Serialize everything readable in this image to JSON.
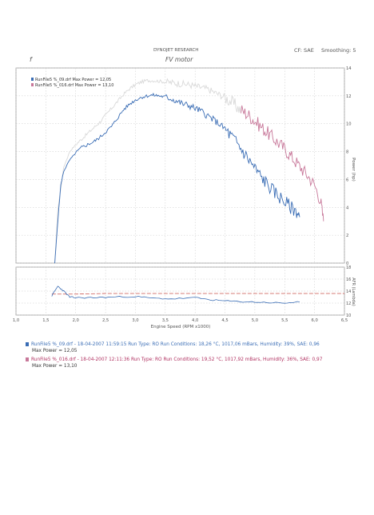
{
  "header": {
    "brand": "DYNOJET RESEARCH",
    "chart_name": "FV motor",
    "correction": "CF: SAE",
    "smoothing": "Smoothing: 5",
    "corner_mark": "f"
  },
  "colors": {
    "run09": "#3a6db5",
    "run016": "#c8789a",
    "run016_early": "#d9d9d9",
    "afr_line": "#c8504a",
    "grid": "#c0c0c0",
    "axis": "#555555"
  },
  "legend": {
    "entries": [
      {
        "text": "RunFile5 %_09.drf Max Power = 12,05",
        "color": "#3a6db5"
      },
      {
        "text": "RunFile5 %_016.drf Max Power = 13,10",
        "color": "#c8789a"
      }
    ]
  },
  "runs": [
    {
      "line1": "RunFile5 %_09.drf - 18-04-2007 11:59:15  Run Type: RO  Run Conditions: 18,26 °C, 1017,06 mBars,  Humidity: 39%, SAE: 0,96",
      "line2": "Max Power = 12,05",
      "color": "#3a6db5"
    },
    {
      "line1": "RunFile5 %_016.drf - 18-04-2007 12:11:36  Run Type: RO  Run Conditions: 19,52 °C, 1017,92 mBars,  Humidity: 36%, SAE: 0,97",
      "line2": "Max Power = 13,10",
      "color": "#c8789a"
    }
  ],
  "chart_data": [
    {
      "type": "line",
      "title": "FV motor",
      "ylabel": "Power (hp)",
      "xlim": [
        1.0,
        6.5
      ],
      "ylim": [
        0,
        14
      ],
      "yticks": [
        "0",
        "2",
        "4",
        "6",
        "8",
        "10",
        "12",
        "14"
      ],
      "grid": true,
      "legend_position": "top-left",
      "series": [
        {
          "name": "RunFile5 %_09.drf Max Power = 12,05",
          "color": "#3a6db5",
          "x": [
            1.65,
            1.7,
            1.75,
            1.8,
            1.9,
            2.0,
            2.1,
            2.2,
            2.3,
            2.4,
            2.5,
            2.6,
            2.7,
            2.8,
            2.9,
            3.0,
            3.1,
            3.2,
            3.3,
            3.4,
            3.5,
            3.6,
            3.7,
            3.8,
            3.9,
            4.0,
            4.1,
            4.2,
            4.3,
            4.4,
            4.5,
            4.6,
            4.7,
            4.8,
            4.9,
            5.0,
            5.1,
            5.2,
            5.3,
            5.4,
            5.5,
            5.6,
            5.7,
            5.75
          ],
          "y": [
            0.0,
            3.0,
            5.6,
            6.6,
            7.4,
            7.9,
            8.3,
            8.5,
            8.7,
            9.0,
            9.4,
            9.8,
            10.4,
            11.0,
            11.4,
            11.7,
            11.9,
            12.0,
            12.05,
            12.0,
            11.9,
            11.8,
            11.6,
            11.4,
            11.3,
            11.1,
            10.9,
            10.6,
            10.3,
            10.0,
            9.6,
            9.1,
            8.6,
            8.0,
            7.4,
            6.8,
            6.2,
            5.7,
            5.2,
            4.8,
            4.4,
            4.0,
            3.7,
            3.3
          ]
        },
        {
          "name": "RunFile5 %_016.drf Max Power = 13,10",
          "color": "#c8789a",
          "x": [
            1.65,
            1.7,
            1.8,
            1.9,
            2.0,
            2.1,
            2.2,
            2.3,
            2.4,
            2.5,
            2.6,
            2.7,
            2.8,
            2.9,
            3.0,
            3.1,
            3.2,
            3.3,
            3.4,
            3.5,
            3.6,
            3.7,
            3.8,
            3.9,
            4.0,
            4.1,
            4.2,
            4.3,
            4.4,
            4.5,
            4.6,
            4.7,
            4.8,
            4.9,
            5.0,
            5.1,
            5.2,
            5.3,
            5.4,
            5.5,
            5.6,
            5.7,
            5.8,
            5.9,
            6.0,
            6.1,
            6.15
          ],
          "y": [
            0.0,
            3.8,
            6.9,
            8.0,
            8.5,
            8.9,
            9.3,
            9.7,
            10.1,
            10.6,
            11.1,
            11.6,
            12.1,
            12.5,
            12.8,
            13.0,
            13.1,
            13.1,
            13.05,
            13.0,
            12.95,
            12.9,
            12.85,
            12.8,
            12.7,
            12.6,
            12.5,
            12.3,
            12.1,
            11.9,
            11.6,
            11.2,
            10.9,
            10.6,
            10.2,
            9.8,
            9.4,
            9.0,
            8.6,
            8.2,
            7.7,
            7.2,
            6.7,
            6.2,
            5.6,
            4.5,
            3.0
          ]
        }
      ]
    },
    {
      "type": "line",
      "xlabel": "Engine Speed (RPM x1000)",
      "ylabel": "AFR (Lambda)",
      "xlim": [
        1.0,
        6.5
      ],
      "xticks": [
        "1,0",
        "1,5",
        "2,0",
        "2,5",
        "3,0",
        "3,5",
        "4,0",
        "4,5",
        "5,0",
        "5,5",
        "6,0",
        "6,5"
      ],
      "ylim": [
        10,
        18
      ],
      "yticks": [
        "10",
        "12",
        "14",
        "16",
        "18"
      ],
      "grid": true,
      "series": [
        {
          "name": "RunFile5 %_09.drf",
          "color": "#3a6db5",
          "x": [
            1.6,
            1.7,
            1.8,
            1.9,
            2.0,
            2.3,
            2.6,
            3.0,
            3.3,
            3.6,
            4.0,
            4.3,
            4.6,
            4.9,
            5.2,
            5.5,
            5.75
          ],
          "y": [
            13.2,
            14.8,
            14.0,
            13.0,
            12.9,
            12.9,
            13.0,
            13.1,
            12.8,
            12.7,
            12.9,
            12.5,
            12.3,
            12.2,
            12.1,
            12.0,
            12.2
          ]
        },
        {
          "name": "RunFile5 %_016.drf",
          "color": "#c8789a",
          "x": [
            1.6,
            2.0,
            2.5,
            3.0,
            3.5,
            4.0,
            4.5,
            5.0,
            5.5,
            6.0,
            6.5
          ],
          "y": [
            13.5,
            13.5,
            13.6,
            13.6,
            13.6,
            13.6,
            13.6,
            13.6,
            13.6,
            13.6,
            13.6
          ]
        }
      ]
    }
  ]
}
